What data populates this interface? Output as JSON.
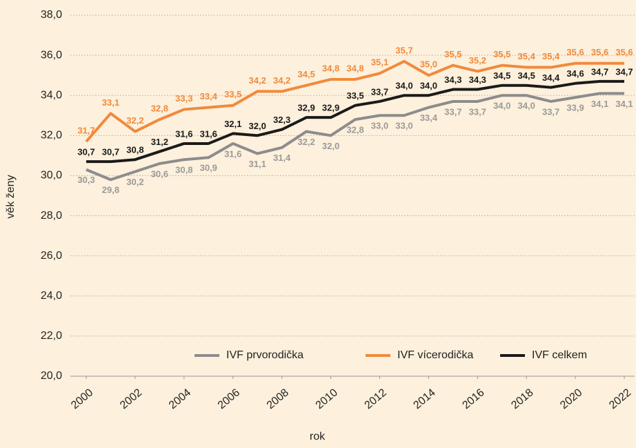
{
  "chart_data": {
    "type": "line",
    "x_label": "rok",
    "y_label": "věk ženy",
    "x": [
      2000,
      2001,
      2002,
      2003,
      2004,
      2005,
      2006,
      2007,
      2008,
      2009,
      2010,
      2011,
      2012,
      2013,
      2014,
      2015,
      2016,
      2017,
      2018,
      2019,
      2020,
      2021,
      2022
    ],
    "xlim": [
      2000,
      2022
    ],
    "xticks": [
      2000,
      2002,
      2004,
      2006,
      2008,
      2010,
      2012,
      2014,
      2016,
      2018,
      2020,
      2022
    ],
    "ylim": [
      20,
      38
    ],
    "yticks": [
      {
        "value": 20,
        "label": "20,0"
      },
      {
        "value": 22,
        "label": "22,0"
      },
      {
        "value": 24,
        "label": "24,0"
      },
      {
        "value": 26,
        "label": "26,0"
      },
      {
        "value": 28,
        "label": "28,0"
      },
      {
        "value": 30,
        "label": "30,0"
      },
      {
        "value": 32,
        "label": "32,0"
      },
      {
        "value": 34,
        "label": "34,0"
      },
      {
        "value": 36,
        "label": "36,0"
      },
      {
        "value": 38,
        "label": "38,0"
      }
    ],
    "grid": true,
    "series": [
      {
        "name": "IVF prvorodička",
        "color": "#8c8c8c",
        "values": [
          30.3,
          29.8,
          30.2,
          30.6,
          30.8,
          30.9,
          31.6,
          31.1,
          31.4,
          32.2,
          32.0,
          32.8,
          33.0,
          33.0,
          33.4,
          33.7,
          33.7,
          34.0,
          34.0,
          33.7,
          33.9,
          34.1,
          34.1
        ],
        "value_labels": [
          "30,3",
          "29,8",
          "30,2",
          "30,6",
          "30,8",
          "30,9",
          "31,6",
          "31,1",
          "31,4",
          "32,2",
          "32,0",
          "32,8",
          "33,0",
          "33,0",
          "33,4",
          "33,7",
          "33,7",
          "34,0",
          "34,0",
          "33,7",
          "33,9",
          "34,1",
          "34,1"
        ]
      },
      {
        "name": "IVF vícerodička",
        "color": "#f08a3c",
        "values": [
          31.7,
          33.1,
          32.2,
          32.8,
          33.3,
          33.4,
          33.5,
          34.2,
          34.2,
          34.5,
          34.8,
          34.8,
          35.1,
          35.7,
          35.0,
          35.5,
          35.2,
          35.5,
          35.4,
          35.4,
          35.6,
          35.6,
          35.6
        ],
        "value_labels": [
          "31,7",
          "33,1",
          "32,2",
          "32,8",
          "33,3",
          "33,4",
          "33,5",
          "34,2",
          "34,2",
          "34,5",
          "34,8",
          "34,8",
          "35,1",
          "35,7",
          "35,0",
          "35,5",
          "35,2",
          "35,5",
          "35,4",
          "35,4",
          "35,6",
          "35,6",
          "35,6"
        ]
      },
      {
        "name": "IVF celkem",
        "color": "#1a1a1a",
        "values": [
          30.7,
          30.7,
          30.8,
          31.2,
          31.6,
          31.6,
          32.1,
          32.0,
          32.3,
          32.9,
          32.9,
          33.5,
          33.7,
          34.0,
          34.0,
          34.3,
          34.3,
          34.5,
          34.5,
          34.4,
          34.6,
          34.7,
          34.7
        ],
        "value_labels": [
          "30,7",
          "30,7",
          "30,8",
          "31,2",
          "31,6",
          "31,6",
          "32,1",
          "32,0",
          "32,3",
          "32,9",
          "32,9",
          "33,5",
          "33,7",
          "34,0",
          "34,0",
          "34,3",
          "34,3",
          "34,5",
          "34,5",
          "34,4",
          "34,6",
          "34,7",
          "34,7"
        ]
      }
    ]
  }
}
